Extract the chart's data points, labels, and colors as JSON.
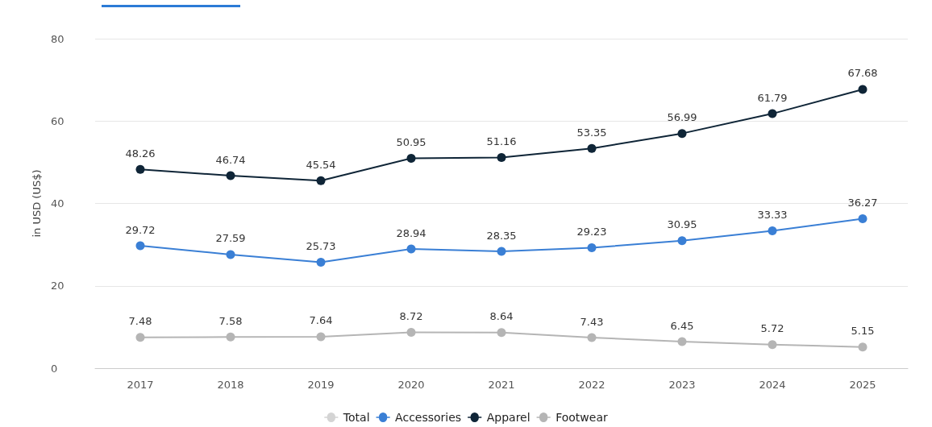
{
  "chart_data": {
    "type": "line",
    "ylabel": "in USD (US$)",
    "categories": [
      "2017",
      "2018",
      "2019",
      "2020",
      "2021",
      "2022",
      "2023",
      "2024",
      "2025"
    ],
    "series": [
      {
        "name": "Total",
        "color": "#d4d4d4",
        "values": [
          null,
          null,
          null,
          null,
          null,
          null,
          null,
          null,
          null
        ]
      },
      {
        "name": "Accessories",
        "color": "#3a7fd5",
        "values": [
          29.72,
          27.59,
          25.73,
          28.94,
          28.35,
          29.23,
          30.95,
          33.33,
          36.27
        ]
      },
      {
        "name": "Apparel",
        "color": "#0f2537",
        "values": [
          48.26,
          46.74,
          45.54,
          50.95,
          51.16,
          53.35,
          56.99,
          61.79,
          67.68
        ]
      },
      {
        "name": "Footwear",
        "color": "#b5b5b5",
        "values": [
          7.48,
          7.58,
          7.64,
          8.72,
          8.64,
          7.43,
          6.45,
          5.72,
          5.15
        ]
      }
    ],
    "ylim": [
      0,
      80
    ],
    "yticks": [
      0,
      20,
      40,
      60,
      80
    ],
    "grid": "y",
    "legend": "bottom",
    "marker": "circle",
    "line_style": "solid",
    "data_labels": true
  }
}
